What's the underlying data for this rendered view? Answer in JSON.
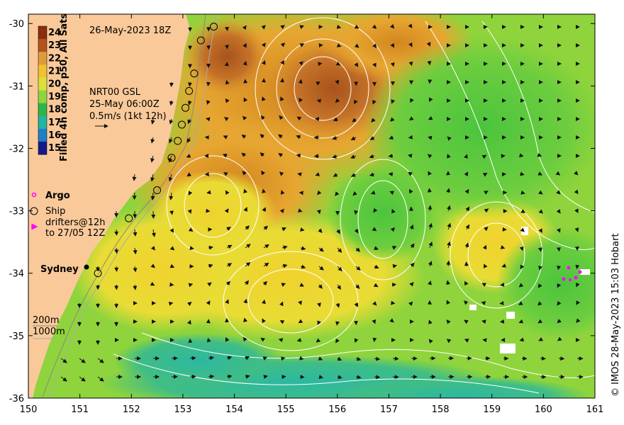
{
  "map": {
    "title": "26-May-2023 18Z",
    "colorbar": {
      "label": "Filled 4h comp, p50, All Sats",
      "ticks": [
        "24",
        "23",
        "22",
        "21",
        "20",
        "19",
        "18",
        "17",
        "16",
        "15"
      ],
      "colors": [
        "#8b2d0f",
        "#b5541a",
        "#e09a3a",
        "#f2c232",
        "#d8e23a",
        "#8ed63e",
        "#2fb44a",
        "#1fb5a0",
        "#1e7fc8",
        "#141a8c"
      ]
    },
    "current_info": {
      "line1": "NRT00 GSL",
      "line2": "25-May 06:00Z",
      "line3": "0.5m/s (1kt 12h)"
    },
    "legend": {
      "argo": "Argo",
      "ship": "Ship",
      "drifters_line1": "drifters@12h",
      "drifters_line2": "to 27/05 12Z",
      "argo_color": "#ff00ff",
      "drifter_color": "#ff00ff"
    },
    "city": "Sydney",
    "bathymetry": {
      "line1": "200m",
      "line2": "1000m"
    },
    "x_axis": {
      "ticks": [
        "150",
        "151",
        "152",
        "153",
        "154",
        "155",
        "156",
        "157",
        "158",
        "159",
        "160",
        "161"
      ],
      "range": [
        150,
        161
      ]
    },
    "y_axis": {
      "ticks": [
        "-30",
        "-31",
        "-32",
        "-33",
        "-34",
        "-35",
        "-36"
      ],
      "range": [
        -36,
        -29.85
      ]
    },
    "credit": "© IMOS 28-May-2023 15:03 Hobart",
    "land_color": "#f9c99a",
    "ship_track": [
      [
        151.35,
        -34.0
      ],
      [
        151.95,
        -33.12
      ],
      [
        152.5,
        -32.67
      ],
      [
        152.78,
        -32.15
      ],
      [
        152.9,
        -31.88
      ],
      [
        152.98,
        -31.62
      ],
      [
        153.05,
        -31.35
      ],
      [
        153.12,
        -31.08
      ],
      [
        153.22,
        -30.8
      ],
      [
        153.35,
        -30.27
      ],
      [
        153.6,
        -30.05
      ]
    ]
  }
}
